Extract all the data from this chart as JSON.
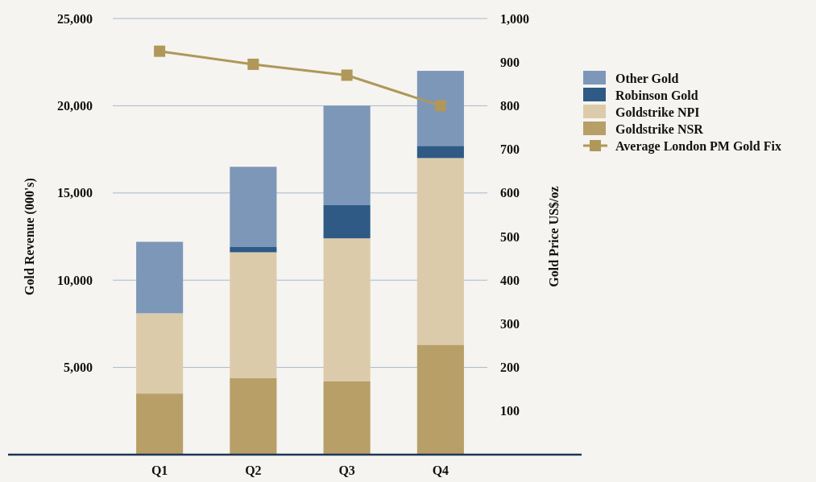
{
  "chart_data": {
    "type": "bar",
    "stacked": true,
    "categories": [
      "Q1",
      "Q2",
      "Q3",
      "Q4"
    ],
    "ylabel": "Gold Revenue (000's)",
    "y2label": "Gold Price US$/oz",
    "ylim": [
      0,
      25000
    ],
    "yticks": [
      {
        "value": 5000,
        "label": "5,000"
      },
      {
        "value": 10000,
        "label": "10,000"
      },
      {
        "value": 15000,
        "label": "15,000"
      },
      {
        "value": 20000,
        "label": "20,000"
      },
      {
        "value": 25000,
        "label": "25,000"
      }
    ],
    "y2lim": [
      0,
      1000
    ],
    "y2ticks": [
      100,
      200,
      300,
      400,
      500,
      600,
      700,
      800,
      900,
      {
        "value": 1000,
        "label": "1,000"
      }
    ],
    "grid": "y",
    "legend": "right",
    "series": [
      {
        "name": "Goldstrike NSR",
        "color": "#b89f68",
        "values": [
          3500,
          4400,
          4200,
          6300
        ]
      },
      {
        "name": "Goldstrike NPI",
        "color": "#dccbaa",
        "values": [
          4600,
          7200,
          8200,
          10700
        ]
      },
      {
        "name": "Robinson Gold",
        "color": "#2e5a85",
        "values": [
          0,
          300,
          1900,
          700
        ]
      },
      {
        "name": "Other Gold",
        "color": "#7d97b8",
        "values": [
          4100,
          4600,
          5700,
          4300
        ]
      },
      {
        "name": "Average London PM Gold Fix",
        "type": "line",
        "axis": "y2",
        "marker": "square",
        "color": "#b0975a",
        "values": [
          925,
          895,
          870,
          800
        ]
      }
    ]
  }
}
